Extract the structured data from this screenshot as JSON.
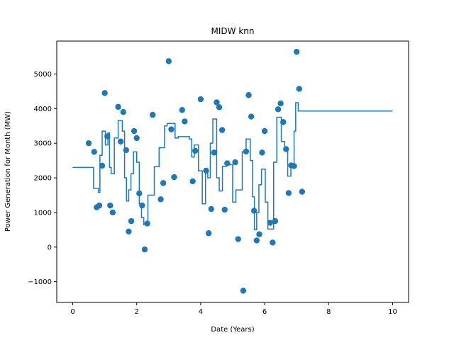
{
  "chart_data": {
    "type": "scatter",
    "title": "MIDW knn",
    "xlabel": "Date (Years)",
    "ylabel": "Power Generation for Month (MW)",
    "xlim": [
      -0.5,
      10.5
    ],
    "ylim": [
      -1600,
      5950
    ],
    "xticks": [
      0,
      2,
      4,
      6,
      8,
      10
    ],
    "yticks": [
      -1000,
      0,
      1000,
      2000,
      3000,
      4000,
      5000
    ],
    "grid": false,
    "color": "#1f77b4",
    "points": [
      [
        0.5,
        3000
      ],
      [
        0.67,
        2750
      ],
      [
        0.75,
        1150
      ],
      [
        0.83,
        1200
      ],
      [
        0.92,
        2350
      ],
      [
        1.0,
        4450
      ],
      [
        1.08,
        3200
      ],
      [
        1.17,
        1200
      ],
      [
        1.25,
        1000
      ],
      [
        1.42,
        4050
      ],
      [
        1.5,
        3050
      ],
      [
        1.58,
        3900
      ],
      [
        1.67,
        2800
      ],
      [
        1.75,
        450
      ],
      [
        1.83,
        750
      ],
      [
        1.92,
        3350
      ],
      [
        2.0,
        3150
      ],
      [
        2.08,
        1550
      ],
      [
        2.17,
        1200
      ],
      [
        2.25,
        -70
      ],
      [
        2.33,
        680
      ],
      [
        2.5,
        3820
      ],
      [
        2.75,
        1380
      ],
      [
        2.83,
        1850
      ],
      [
        3.0,
        5370
      ],
      [
        3.08,
        3400
      ],
      [
        3.17,
        2020
      ],
      [
        3.42,
        3960
      ],
      [
        3.5,
        3630
      ],
      [
        3.75,
        1900
      ],
      [
        3.83,
        2780
      ],
      [
        4.0,
        4270
      ],
      [
        4.17,
        2210
      ],
      [
        4.25,
        400
      ],
      [
        4.33,
        1100
      ],
      [
        4.42,
        2730
      ],
      [
        4.5,
        4180
      ],
      [
        4.58,
        4040
      ],
      [
        4.67,
        3380
      ],
      [
        4.75,
        1080
      ],
      [
        4.83,
        2420
      ],
      [
        5.08,
        2450
      ],
      [
        5.17,
        230
      ],
      [
        5.33,
        -1260
      ],
      [
        5.42,
        2760
      ],
      [
        5.5,
        4390
      ],
      [
        5.58,
        3770
      ],
      [
        5.67,
        1050
      ],
      [
        5.75,
        190
      ],
      [
        5.83,
        370
      ],
      [
        5.92,
        2730
      ],
      [
        6.0,
        3350
      ],
      [
        6.17,
        700
      ],
      [
        6.25,
        130
      ],
      [
        6.33,
        750
      ],
      [
        6.42,
        3980
      ],
      [
        6.5,
        4150
      ],
      [
        6.58,
        3610
      ],
      [
        6.67,
        2830
      ],
      [
        6.75,
        1560
      ],
      [
        6.83,
        2360
      ],
      [
        6.92,
        2340
      ],
      [
        7.0,
        5640
      ],
      [
        7.08,
        4570
      ],
      [
        7.17,
        1600
      ]
    ],
    "step_line": [
      [
        0,
        2300
      ],
      [
        0.65,
        2300
      ],
      [
        0.65,
        1700
      ],
      [
        0.8,
        1700
      ],
      [
        0.8,
        1580
      ],
      [
        0.85,
        1580
      ],
      [
        0.85,
        2650
      ],
      [
        0.92,
        2650
      ],
      [
        0.92,
        3350
      ],
      [
        1.02,
        3350
      ],
      [
        1.02,
        2950
      ],
      [
        1.1,
        2950
      ],
      [
        1.1,
        3300
      ],
      [
        1.15,
        3300
      ],
      [
        1.15,
        2300
      ],
      [
        1.2,
        2300
      ],
      [
        1.2,
        2120
      ],
      [
        1.3,
        2120
      ],
      [
        1.3,
        3150
      ],
      [
        1.42,
        3150
      ],
      [
        1.42,
        3650
      ],
      [
        1.55,
        3650
      ],
      [
        1.55,
        3350
      ],
      [
        1.62,
        3350
      ],
      [
        1.62,
        2000
      ],
      [
        1.68,
        2000
      ],
      [
        1.68,
        1330
      ],
      [
        1.75,
        1330
      ],
      [
        1.75,
        1650
      ],
      [
        1.82,
        1650
      ],
      [
        1.82,
        2120
      ],
      [
        1.9,
        2120
      ],
      [
        1.9,
        2750
      ],
      [
        2.0,
        2750
      ],
      [
        2.0,
        2450
      ],
      [
        2.08,
        2450
      ],
      [
        2.08,
        1250
      ],
      [
        2.15,
        1250
      ],
      [
        2.15,
        850
      ],
      [
        2.22,
        850
      ],
      [
        2.22,
        650
      ],
      [
        2.35,
        650
      ],
      [
        2.35,
        1500
      ],
      [
        2.55,
        1500
      ],
      [
        2.55,
        2320
      ],
      [
        2.7,
        2320
      ],
      [
        2.7,
        2870
      ],
      [
        2.87,
        2870
      ],
      [
        2.87,
        3500
      ],
      [
        2.95,
        3500
      ],
      [
        2.95,
        3570
      ],
      [
        3.2,
        3570
      ],
      [
        3.2,
        3150
      ],
      [
        3.3,
        3150
      ],
      [
        3.3,
        3190
      ],
      [
        3.65,
        3190
      ],
      [
        3.65,
        3120
      ],
      [
        3.72,
        3120
      ],
      [
        3.72,
        2600
      ],
      [
        3.8,
        2600
      ],
      [
        3.8,
        2950
      ],
      [
        3.93,
        2950
      ],
      [
        3.93,
        2200
      ],
      [
        4.05,
        2200
      ],
      [
        4.05,
        1250
      ],
      [
        4.15,
        1250
      ],
      [
        4.15,
        2150
      ],
      [
        4.22,
        2150
      ],
      [
        4.22,
        2000
      ],
      [
        4.3,
        2000
      ],
      [
        4.3,
        3000
      ],
      [
        4.38,
        3000
      ],
      [
        4.38,
        3700
      ],
      [
        4.5,
        3700
      ],
      [
        4.5,
        2000
      ],
      [
        4.58,
        2000
      ],
      [
        4.58,
        1620
      ],
      [
        4.68,
        1620
      ],
      [
        4.68,
        2330
      ],
      [
        4.8,
        2330
      ],
      [
        4.8,
        2380
      ],
      [
        5.0,
        2380
      ],
      [
        5.0,
        1300
      ],
      [
        5.1,
        1300
      ],
      [
        5.1,
        1650
      ],
      [
        5.3,
        1650
      ],
      [
        5.3,
        2750
      ],
      [
        5.42,
        2750
      ],
      [
        5.42,
        3120
      ],
      [
        5.55,
        3120
      ],
      [
        5.55,
        2500
      ],
      [
        5.62,
        2500
      ],
      [
        5.62,
        1450
      ],
      [
        5.68,
        1450
      ],
      [
        5.68,
        500
      ],
      [
        5.75,
        500
      ],
      [
        5.75,
        1000
      ],
      [
        5.82,
        1000
      ],
      [
        5.82,
        1800
      ],
      [
        5.9,
        1800
      ],
      [
        5.9,
        2250
      ],
      [
        6.02,
        2250
      ],
      [
        6.02,
        1300
      ],
      [
        6.1,
        1300
      ],
      [
        6.1,
        520
      ],
      [
        6.28,
        520
      ],
      [
        6.28,
        2450
      ],
      [
        6.38,
        2450
      ],
      [
        6.38,
        3750
      ],
      [
        6.52,
        3750
      ],
      [
        6.52,
        3050
      ],
      [
        6.62,
        3050
      ],
      [
        6.62,
        2850
      ],
      [
        6.72,
        2850
      ],
      [
        6.72,
        2050
      ],
      [
        6.82,
        2050
      ],
      [
        6.82,
        2300
      ],
      [
        6.92,
        2300
      ],
      [
        6.92,
        3350
      ],
      [
        6.97,
        3350
      ],
      [
        6.97,
        4170
      ],
      [
        7.05,
        4170
      ],
      [
        7.05,
        3930
      ],
      [
        10,
        3930
      ]
    ]
  }
}
